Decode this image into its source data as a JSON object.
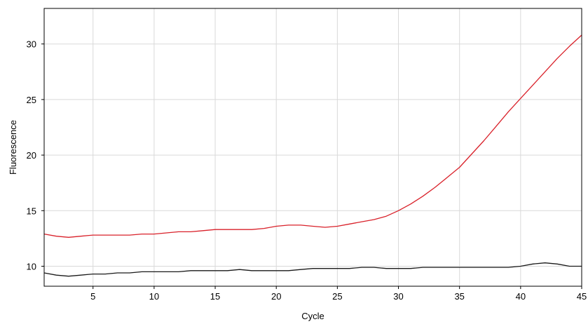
{
  "chart_data": {
    "type": "line",
    "title": "",
    "xlabel": "Cycle",
    "ylabel": "Fluorescence",
    "xlim": [
      1,
      45
    ],
    "ylim": [
      8.2,
      33.2
    ],
    "x_ticks": [
      5,
      10,
      15,
      20,
      25,
      30,
      35,
      40,
      45
    ],
    "y_ticks": [
      10,
      15,
      20,
      25,
      30
    ],
    "grid": true,
    "legend": "none",
    "series": [
      {
        "color": "#d9212a",
        "x": [
          1,
          2,
          3,
          4,
          5,
          6,
          7,
          8,
          9,
          10,
          11,
          12,
          13,
          14,
          15,
          16,
          17,
          18,
          19,
          20,
          21,
          22,
          23,
          24,
          25,
          26,
          27,
          28,
          29,
          30,
          31,
          32,
          33,
          34,
          35,
          36,
          37,
          38,
          39,
          40,
          41,
          42,
          43,
          44,
          45
        ],
        "y": [
          12.9,
          12.7,
          12.6,
          12.7,
          12.8,
          12.8,
          12.8,
          12.8,
          12.9,
          12.9,
          13.0,
          13.1,
          13.1,
          13.2,
          13.3,
          13.3,
          13.3,
          13.3,
          13.4,
          13.6,
          13.7,
          13.7,
          13.6,
          13.5,
          13.6,
          13.8,
          14.0,
          14.2,
          14.5,
          15.0,
          15.6,
          16.3,
          17.1,
          18.0,
          18.9,
          20.1,
          21.3,
          22.6,
          23.9,
          25.1,
          26.3,
          27.5,
          28.7,
          29.8,
          30.8
        ]
      },
      {
        "color": "#1a1a1a",
        "x": [
          1,
          2,
          3,
          4,
          5,
          6,
          7,
          8,
          9,
          10,
          11,
          12,
          13,
          14,
          15,
          16,
          17,
          18,
          19,
          20,
          21,
          22,
          23,
          24,
          25,
          26,
          27,
          28,
          29,
          30,
          31,
          32,
          33,
          34,
          35,
          36,
          37,
          38,
          39,
          40,
          41,
          42,
          43,
          44,
          45
        ],
        "y": [
          9.4,
          9.2,
          9.1,
          9.2,
          9.3,
          9.3,
          9.4,
          9.4,
          9.5,
          9.5,
          9.5,
          9.5,
          9.6,
          9.6,
          9.6,
          9.6,
          9.7,
          9.6,
          9.6,
          9.6,
          9.6,
          9.7,
          9.8,
          9.8,
          9.8,
          9.8,
          9.9,
          9.9,
          9.8,
          9.8,
          9.8,
          9.9,
          9.9,
          9.9,
          9.9,
          9.9,
          9.9,
          9.9,
          9.9,
          10.0,
          10.2,
          10.3,
          10.2,
          10.0,
          10.0
        ]
      }
    ]
  }
}
